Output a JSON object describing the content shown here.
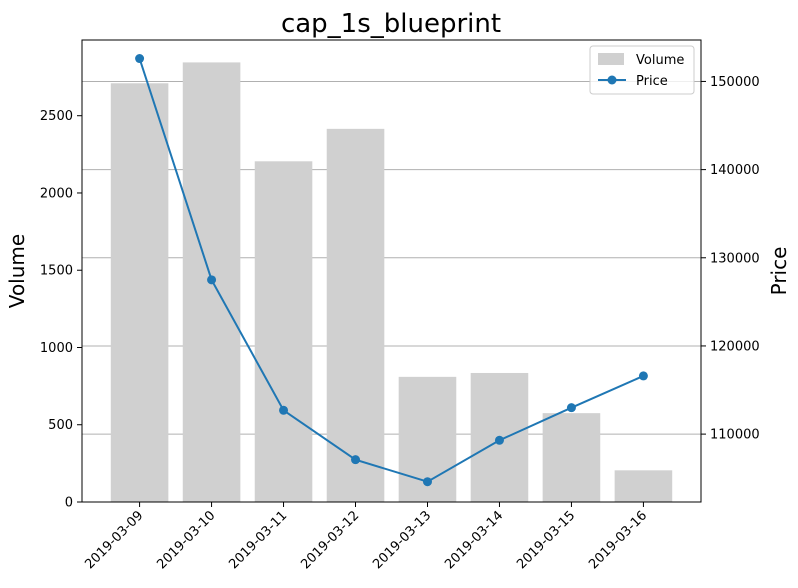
{
  "chart_data": {
    "type": "bar",
    "title": "cap_1s_blueprint",
    "xlabel": "",
    "ylabel": "Volume",
    "y2label": "Price",
    "categories": [
      "2019-03-09",
      "2019-03-10",
      "2019-03-11",
      "2019-03-12",
      "2019-03-13",
      "2019-03-14",
      "2019-03-15",
      "2019-03-16"
    ],
    "series": [
      {
        "name": "Volume",
        "type": "bar",
        "axis": "left",
        "color": "#d0d0d0",
        "values": [
          2710,
          2845,
          2205,
          2415,
          810,
          835,
          575,
          205
        ]
      },
      {
        "name": "Price",
        "type": "line",
        "axis": "right",
        "color": "#1f77b4",
        "marker": "circle",
        "values": [
          152600,
          127500,
          112700,
          107100,
          104600,
          109300,
          113000,
          116600
        ]
      }
    ],
    "ylim": [
      0,
      2990
    ],
    "y2lim": [
      102300,
      154700
    ],
    "yticks": [
      0,
      500,
      1000,
      1500,
      2000,
      2500
    ],
    "y2ticks": [
      110000,
      120000,
      130000,
      140000,
      150000
    ],
    "grid": "horizontal lines at right-axis ticks",
    "legend": "top-right"
  }
}
